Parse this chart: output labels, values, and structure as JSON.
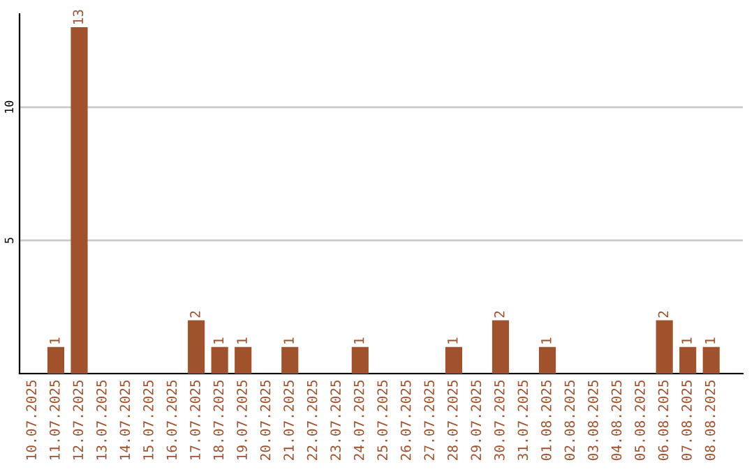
{
  "chart_data": {
    "type": "bar",
    "categories": [
      "10.07.2025",
      "11.07.2025",
      "12.07.2025",
      "13.07.2025",
      "14.07.2025",
      "15.07.2025",
      "16.07.2025",
      "17.07.2025",
      "18.07.2025",
      "19.07.2025",
      "20.07.2025",
      "21.07.2025",
      "22.07.2025",
      "23.07.2025",
      "24.07.2025",
      "25.07.2025",
      "26.07.2025",
      "27.07.2025",
      "28.07.2025",
      "29.07.2025",
      "30.07.2025",
      "31.07.2025",
      "01.08.2025",
      "02.08.2025",
      "03.08.2025",
      "04.08.2025",
      "05.08.2025",
      "06.08.2025",
      "07.08.2025",
      "08.08.2025"
    ],
    "values": [
      0,
      1,
      13,
      0,
      0,
      0,
      0,
      2,
      1,
      1,
      0,
      1,
      0,
      0,
      1,
      0,
      0,
      0,
      1,
      0,
      2,
      0,
      1,
      0,
      0,
      0,
      0,
      2,
      1,
      1
    ],
    "value_labels": [
      null,
      "1",
      "13",
      null,
      null,
      null,
      null,
      "2",
      "1",
      "1",
      null,
      "1",
      null,
      null,
      "1",
      null,
      null,
      null,
      "1",
      null,
      "2",
      null,
      "1",
      null,
      null,
      null,
      null,
      "2",
      "1",
      "1"
    ],
    "color": "#a0522d",
    "ylim": [
      0,
      13.5
    ],
    "yticks": [
      {
        "value": 0,
        "label": null
      },
      5,
      10
    ],
    "grid": "y"
  }
}
